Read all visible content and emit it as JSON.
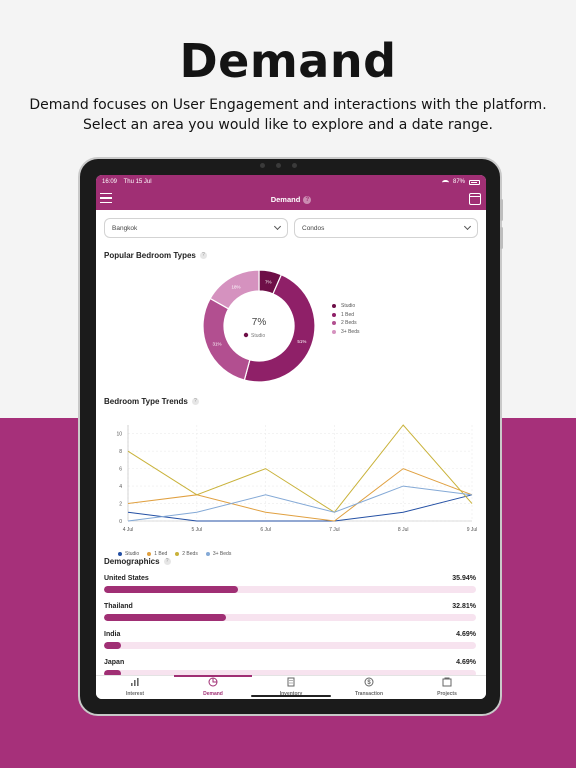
{
  "hero": {
    "title": "Demand",
    "subtitle_line1": "Demand focuses on User Engagement and interactions with the platform.",
    "subtitle_line2": "Select an area you would like to explore and a date range."
  },
  "status_bar": {
    "time": "16:09",
    "date": "Thu 15 Jul",
    "battery": "87%"
  },
  "nav": {
    "title": "Demand",
    "help": "?"
  },
  "filters": {
    "location": "Bangkok",
    "property_type": "Condos"
  },
  "bedroom_types": {
    "title": "Popular Bedroom Types",
    "help": "?",
    "center_value": "7%",
    "center_label": "Studio"
  },
  "bedroom_trends": {
    "title": "Bedroom Type Trends",
    "help": "?"
  },
  "demographics": {
    "title": "Demographics",
    "help": "?",
    "rows": [
      {
        "country": "United States",
        "pct": "35.94%",
        "value": 35.94
      },
      {
        "country": "Thailand",
        "pct": "32.81%",
        "value": 32.81
      },
      {
        "country": "India",
        "pct": "4.69%",
        "value": 4.69
      },
      {
        "country": "Japan",
        "pct": "4.69%",
        "value": 4.69
      }
    ]
  },
  "tabs": [
    {
      "label": "Interest",
      "icon": "bar-chart-icon"
    },
    {
      "label": "Demand",
      "icon": "pie-chart-icon"
    },
    {
      "label": "Inventory",
      "icon": "building-icon"
    },
    {
      "label": "Transaction",
      "icon": "money-icon"
    },
    {
      "label": "Projects",
      "icon": "projects-icon"
    }
  ],
  "colors": {
    "brand": "#a02f74",
    "studio": "#6e0e47",
    "one_bed": "#8f2068",
    "two_beds": "#b24f90",
    "three_beds": "#d592bf",
    "trend_studio": "#2450a4",
    "trend_1bed": "#e0a040",
    "trend_2beds": "#c9b23a",
    "trend_3beds": "#84a9d6"
  },
  "chart_data": [
    {
      "type": "pie",
      "categories": [
        "Studio",
        "1 Bed",
        "2 Beds",
        "3+ Beds"
      ],
      "values": [
        7,
        51,
        31,
        18
      ],
      "slice_labels": [
        "7%",
        "51%",
        "31%",
        "18%"
      ]
    },
    {
      "type": "line",
      "x": [
        "4 Jul",
        "5 Jul",
        "6 Jul",
        "7 Jul",
        "8 Jul",
        "9 Jul"
      ],
      "y_ticks": [
        "0",
        "2",
        "4",
        "6",
        "8",
        "10"
      ],
      "ylim": [
        0,
        11
      ],
      "grid": true,
      "legend": "bottom-left",
      "series": [
        {
          "name": "Studio",
          "values": [
            1,
            0,
            0,
            0,
            1,
            3
          ]
        },
        {
          "name": "1 Bed",
          "values": [
            2,
            3,
            1,
            0,
            6,
            3
          ]
        },
        {
          "name": "2 Beds",
          "values": [
            8,
            3,
            6,
            1,
            11,
            2
          ]
        },
        {
          "name": "3+ Beds",
          "values": [
            0,
            1,
            3,
            1,
            4,
            3
          ]
        }
      ]
    }
  ]
}
